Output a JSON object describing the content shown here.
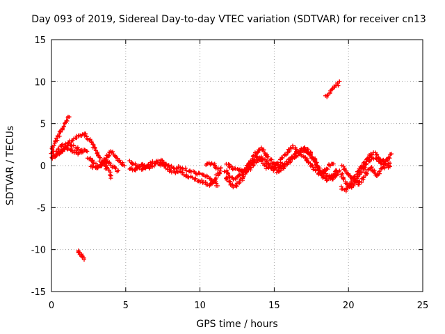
{
  "chart_data": {
    "type": "scatter",
    "title": "Day 093 of 2019, Sidereal Day-to-day VTEC variation (SDTVAR) for receiver cn13",
    "xlabel": "GPS time / hours",
    "ylabel": "SDTVAR / TECUs",
    "xlim": [
      0,
      25
    ],
    "ylim": [
      -15,
      15
    ],
    "x_ticks": [
      0,
      5,
      10,
      15,
      20,
      25
    ],
    "x_tick_labels": [
      "0",
      "5",
      "10",
      "15",
      "20",
      "25"
    ],
    "y_ticks": [
      -15,
      -10,
      -5,
      0,
      5,
      10,
      15
    ],
    "y_tick_labels": [
      "-15",
      "-10",
      "-5",
      "0",
      "5",
      "10",
      "15"
    ],
    "grid": true,
    "marker": "plus",
    "series": [
      {
        "name": "SDTVAR",
        "color": "#ff0000",
        "traces": [
          [
            [
              0.0,
              2.0
            ],
            [
              0.3,
              3.0
            ],
            [
              0.6,
              4.0
            ],
            [
              0.9,
              5.0
            ],
            [
              1.2,
              5.8
            ]
          ],
          [
            [
              0.0,
              0.8
            ],
            [
              0.3,
              1.2
            ],
            [
              0.6,
              1.6
            ],
            [
              0.9,
              2.2
            ],
            [
              1.2,
              2.6
            ],
            [
              1.5,
              2.4
            ],
            [
              1.8,
              2.0
            ],
            [
              2.1,
              1.8
            ],
            [
              2.4,
              1.7
            ]
          ],
          [
            [
              0.0,
              1.5
            ],
            [
              0.4,
              1.9
            ],
            [
              0.8,
              2.4
            ],
            [
              1.2,
              2.8
            ],
            [
              1.6,
              3.3
            ],
            [
              2.0,
              3.6
            ],
            [
              2.3,
              3.8
            ]
          ],
          [
            [
              0.0,
              1.0
            ],
            [
              0.4,
              1.4
            ],
            [
              0.8,
              1.9
            ],
            [
              1.2,
              2.1
            ],
            [
              1.5,
              1.7
            ],
            [
              1.8,
              1.4
            ],
            [
              2.1,
              1.6
            ]
          ],
          [
            [
              2.3,
              3.5
            ],
            [
              2.6,
              3.0
            ],
            [
              2.9,
              2.2
            ],
            [
              3.1,
              1.4
            ],
            [
              3.3,
              0.7
            ],
            [
              3.6,
              0.0
            ],
            [
              3.9,
              -0.8
            ],
            [
              4.0,
              -1.5
            ]
          ],
          [
            [
              2.5,
              1.0
            ],
            [
              2.8,
              0.4
            ],
            [
              3.1,
              -0.2
            ],
            [
              3.4,
              0.2
            ],
            [
              3.7,
              0.9
            ],
            [
              4.0,
              1.7
            ],
            [
              4.3,
              1.2
            ],
            [
              4.6,
              0.4
            ],
            [
              4.9,
              0.0
            ]
          ],
          [
            [
              2.7,
              0.0
            ],
            [
              3.0,
              -0.4
            ],
            [
              3.3,
              0.0
            ],
            [
              3.6,
              0.6
            ],
            [
              3.9,
              0.2
            ],
            [
              4.2,
              -0.3
            ],
            [
              4.5,
              -0.6
            ]
          ],
          [
            [
              1.8,
              -10.0
            ],
            [
              1.9,
              -10.4
            ],
            [
              2.0,
              -10.7
            ],
            [
              2.1,
              -11.0
            ],
            [
              2.2,
              -11.2
            ]
          ],
          [
            [
              5.3,
              0.6
            ],
            [
              5.6,
              0.1
            ],
            [
              5.9,
              -0.2
            ],
            [
              6.2,
              -0.5
            ],
            [
              6.5,
              0.0
            ],
            [
              6.8,
              0.4
            ],
            [
              7.1,
              0.6
            ],
            [
              7.4,
              0.5
            ],
            [
              7.7,
              0.2
            ],
            [
              8.0,
              -0.1
            ],
            [
              8.3,
              -0.3
            ],
            [
              8.6,
              -0.2
            ],
            [
              8.9,
              -0.4
            ],
            [
              9.2,
              -0.6
            ],
            [
              9.5,
              -0.8
            ],
            [
              9.8,
              -0.9
            ],
            [
              10.1,
              -1.1
            ],
            [
              10.4,
              -1.3
            ],
            [
              10.7,
              -1.6
            ],
            [
              11.0,
              -2.0
            ],
            [
              11.2,
              -2.4
            ]
          ],
          [
            [
              5.3,
              -0.3
            ],
            [
              5.6,
              -0.6
            ],
            [
              5.9,
              -0.1
            ],
            [
              6.2,
              0.2
            ],
            [
              6.5,
              -0.3
            ],
            [
              6.8,
              -0.1
            ],
            [
              7.1,
              0.3
            ],
            [
              7.4,
              0.1
            ],
            [
              7.7,
              -0.2
            ],
            [
              8.0,
              -0.6
            ],
            [
              8.3,
              -0.8
            ],
            [
              8.6,
              -0.7
            ],
            [
              8.9,
              -1.0
            ],
            [
              9.2,
              -1.3
            ],
            [
              9.5,
              -1.5
            ],
            [
              9.8,
              -1.7
            ],
            [
              10.1,
              -1.9
            ],
            [
              10.4,
              -2.1
            ],
            [
              10.7,
              -2.3
            ],
            [
              11.0,
              -2.0
            ],
            [
              11.2,
              -1.0
            ],
            [
              11.4,
              -0.3
            ]
          ],
          [
            [
              10.4,
              0.0
            ],
            [
              10.6,
              0.3
            ],
            [
              10.8,
              0.2
            ],
            [
              11.0,
              0.1
            ],
            [
              11.2,
              -0.4
            ]
          ],
          [
            [
              11.7,
              -0.6
            ],
            [
              12.0,
              -1.2
            ],
            [
              12.3,
              -1.6
            ],
            [
              12.6,
              -1.3
            ],
            [
              12.9,
              -0.7
            ],
            [
              13.2,
              0.0
            ],
            [
              13.5,
              0.8
            ],
            [
              13.8,
              1.5
            ],
            [
              14.1,
              2.1
            ],
            [
              14.4,
              1.6
            ],
            [
              14.7,
              0.8
            ],
            [
              15.0,
              0.1
            ],
            [
              15.3,
              -0.2
            ],
            [
              15.6,
              0.1
            ],
            [
              15.9,
              0.5
            ],
            [
              16.2,
              1.0
            ],
            [
              16.5,
              1.5
            ],
            [
              16.8,
              1.9
            ],
            [
              17.1,
              2.1
            ],
            [
              17.4,
              1.6
            ],
            [
              17.7,
              0.8
            ],
            [
              18.0,
              -0.3
            ],
            [
              18.3,
              -1.0
            ],
            [
              18.6,
              -1.3
            ],
            [
              18.9,
              -1.2
            ],
            [
              19.2,
              -0.6
            ]
          ],
          [
            [
              11.7,
              -1.4
            ],
            [
              12.0,
              -2.0
            ],
            [
              12.3,
              -2.5
            ],
            [
              12.6,
              -2.2
            ],
            [
              12.9,
              -1.4
            ],
            [
              13.2,
              -0.7
            ],
            [
              13.5,
              0.0
            ],
            [
              13.8,
              0.6
            ],
            [
              14.1,
              1.0
            ],
            [
              14.4,
              0.6
            ],
            [
              14.7,
              0.0
            ],
            [
              15.0,
              -0.5
            ],
            [
              15.3,
              -0.8
            ],
            [
              15.6,
              -0.3
            ],
            [
              15.9,
              0.3
            ],
            [
              16.2,
              0.8
            ],
            [
              16.5,
              1.2
            ],
            [
              16.8,
              1.6
            ],
            [
              17.1,
              1.9
            ],
            [
              17.4,
              1.3
            ],
            [
              17.7,
              0.5
            ],
            [
              18.0,
              -0.6
            ],
            [
              18.3,
              -1.4
            ],
            [
              18.6,
              -1.7
            ],
            [
              18.9,
              -1.5
            ],
            [
              19.2,
              -1.0
            ]
          ],
          [
            [
              11.8,
              0.2
            ],
            [
              12.1,
              -0.2
            ],
            [
              12.4,
              -0.5
            ],
            [
              12.7,
              -0.4
            ],
            [
              13.0,
              -0.9
            ],
            [
              13.3,
              -0.2
            ],
            [
              13.6,
              0.5
            ],
            [
              13.9,
              1.0
            ],
            [
              14.2,
              0.4
            ],
            [
              14.5,
              -0.2
            ],
            [
              14.8,
              -0.3
            ],
            [
              15.1,
              0.0
            ],
            [
              15.4,
              0.6
            ],
            [
              15.7,
              1.2
            ],
            [
              16.0,
              1.8
            ],
            [
              16.3,
              2.2
            ],
            [
              16.6,
              1.7
            ],
            [
              16.9,
              1.2
            ],
            [
              17.2,
              0.6
            ],
            [
              17.5,
              0.0
            ],
            [
              17.8,
              -0.6
            ],
            [
              18.1,
              -1.0
            ],
            [
              18.4,
              -0.6
            ],
            [
              18.7,
              0.0
            ],
            [
              19.0,
              0.2
            ]
          ],
          [
            [
              18.5,
              8.2
            ],
            [
              18.8,
              8.8
            ],
            [
              19.1,
              9.4
            ],
            [
              19.4,
              10.0
            ]
          ],
          [
            [
              18.6,
              -1.2
            ],
            [
              18.9,
              -1.6
            ],
            [
              19.2,
              -1.0
            ],
            [
              19.4,
              -0.6
            ]
          ],
          [
            [
              19.5,
              -1.0
            ],
            [
              19.8,
              -2.0
            ],
            [
              20.1,
              -2.6
            ],
            [
              20.4,
              -2.1
            ],
            [
              20.7,
              -1.2
            ],
            [
              21.0,
              -0.4
            ],
            [
              21.3,
              0.4
            ],
            [
              21.6,
              1.0
            ],
            [
              21.9,
              0.8
            ],
            [
              22.2,
              0.4
            ],
            [
              22.5,
              0.2
            ],
            [
              22.8,
              0.3
            ]
          ],
          [
            [
              19.6,
              0.0
            ],
            [
              19.9,
              -0.8
            ],
            [
              20.2,
              -1.6
            ],
            [
              20.5,
              -1.2
            ],
            [
              20.8,
              -0.4
            ],
            [
              21.1,
              0.3
            ],
            [
              21.4,
              1.2
            ],
            [
              21.7,
              1.5
            ],
            [
              22.0,
              1.0
            ],
            [
              22.3,
              0.6
            ],
            [
              22.6,
              0.6
            ],
            [
              22.9,
              1.4
            ]
          ],
          [
            [
              19.5,
              -2.6
            ],
            [
              19.8,
              -2.9
            ],
            [
              20.1,
              -2.2
            ],
            [
              20.4,
              -1.6
            ],
            [
              20.7,
              -2.2
            ],
            [
              21.0,
              -1.5
            ],
            [
              21.3,
              -0.6
            ],
            [
              21.6,
              -0.3
            ],
            [
              21.9,
              -1.2
            ],
            [
              22.2,
              -0.4
            ],
            [
              22.5,
              0.0
            ],
            [
              22.8,
              -0.1
            ]
          ]
        ]
      }
    ]
  }
}
